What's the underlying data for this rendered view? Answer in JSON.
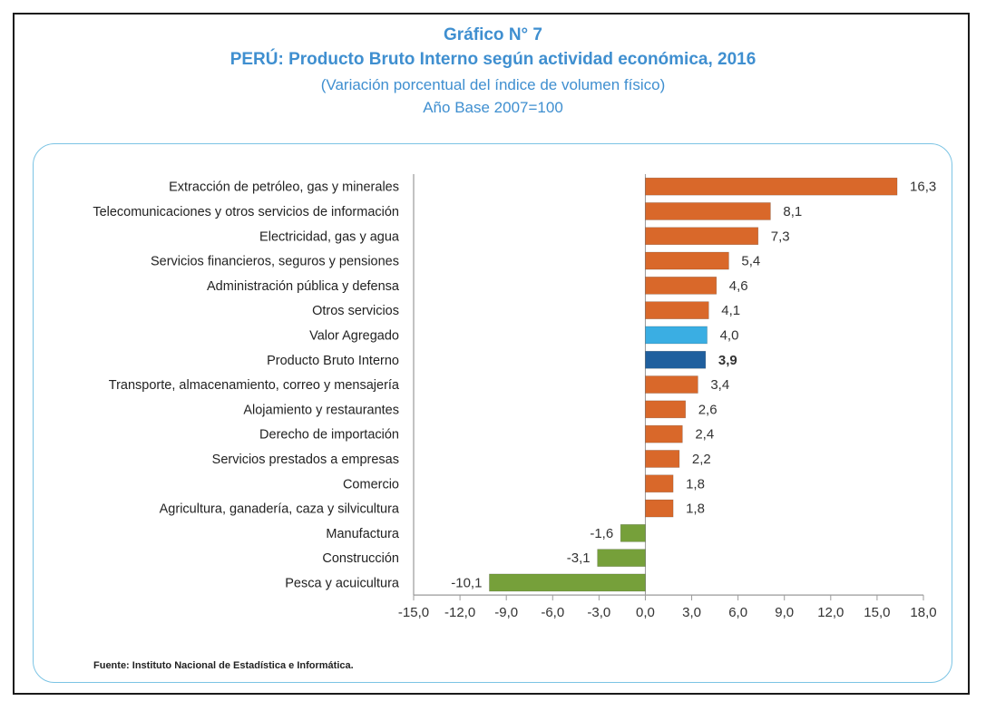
{
  "header": {
    "chart_number": "Gráfico N° 7",
    "title": "PERÚ: Producto Bruto Interno según actividad económica, 2016",
    "subtitle": "(Variación porcentual del índice de volumen físico)",
    "base_year": "Año Base 2007=100"
  },
  "source": "Fuente: Instituto Nacional de Estadística e Informática.",
  "colors": {
    "positive": "#d9682a",
    "negative": "#76a03a",
    "valor_agregado": "#3aaee3",
    "pbi": "#1f5f9e",
    "title": "#3f8fd0",
    "panel_border": "#7cc4e4"
  },
  "chart_data": {
    "type": "bar",
    "orientation": "horizontal",
    "categories": [
      "Extracción de petróleo, gas y minerales",
      "Telecomunicaciones y otros servicios de información",
      "Electricidad, gas y agua",
      "Servicios financieros, seguros y pensiones",
      "Administración pública y defensa",
      "Otros servicios",
      "Valor Agregado",
      "Producto Bruto Interno",
      "Transporte, almacenamiento, correo y mensajería",
      "Alojamiento y restaurantes",
      "Derecho de importación",
      "Servicios prestados a empresas",
      "Comercio",
      "Agricultura, ganadería, caza y silvicultura",
      "Manufactura",
      "Construcción",
      "Pesca y acuicultura"
    ],
    "values": [
      16.3,
      8.1,
      7.3,
      5.4,
      4.6,
      4.1,
      4.0,
      3.9,
      3.4,
      2.6,
      2.4,
      2.2,
      1.8,
      1.8,
      -1.6,
      -3.1,
      -10.1
    ],
    "value_labels": [
      "16,3",
      "8,1",
      "7,3",
      "5,4",
      "4,6",
      "4,1",
      "4,0",
      "3,9",
      "3,4",
      "2,6",
      "2,4",
      "2,2",
      "1,8",
      "1,8",
      "-1,6",
      "-3,1",
      "-10,1"
    ],
    "xlim": [
      -15,
      18
    ],
    "xticks": [
      -15,
      -12,
      -9,
      -6,
      -3,
      0,
      3,
      6,
      9,
      12,
      15,
      18
    ],
    "xtick_labels": [
      "-15,0",
      "-12,0",
      "-9,0",
      "-6,0",
      "-3,0",
      "0,0",
      "3,0",
      "6,0",
      "9,0",
      "12,0",
      "15,0",
      "18,0"
    ],
    "grid": false,
    "legend": "none"
  }
}
